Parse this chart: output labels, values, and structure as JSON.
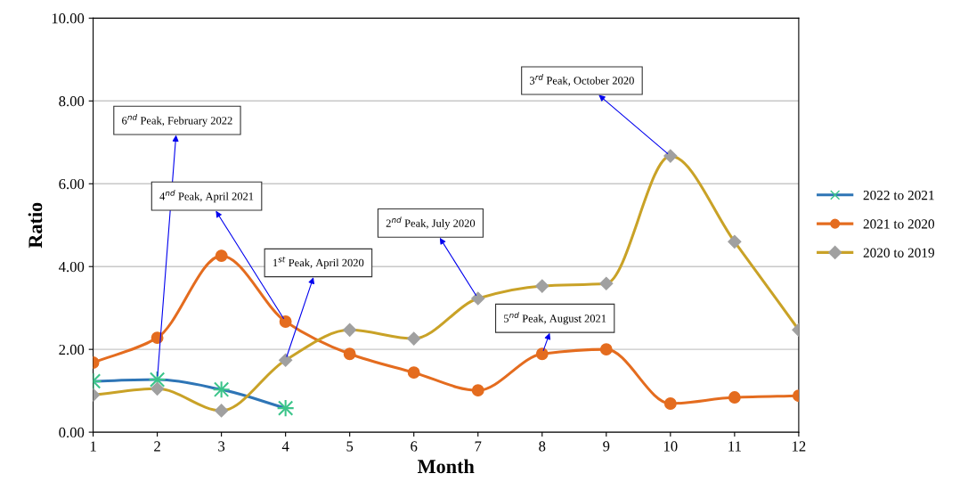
{
  "chart_data": {
    "type": "line",
    "xlabel": "Month",
    "ylabel": "Ratio",
    "x": [
      1,
      2,
      3,
      4,
      5,
      6,
      7,
      8,
      9,
      10,
      11,
      12
    ],
    "series": [
      {
        "name": "2022 to 2021",
        "color": "#2e75b6",
        "marker": "cross",
        "values": [
          1.23,
          1.27,
          1.03,
          0.58,
          null,
          null,
          null,
          null,
          null,
          null,
          null,
          null
        ]
      },
      {
        "name": "2021 to 2020",
        "color": "#e46c1f",
        "marker": "circle",
        "values": [
          1.68,
          2.28,
          4.26,
          2.67,
          1.89,
          1.44,
          1.01,
          1.89,
          2.0,
          0.69,
          0.84,
          0.88
        ]
      },
      {
        "name": "2020 to 2019",
        "color": "#c9a227",
        "marker": "diamond",
        "values": [
          0.9,
          1.05,
          0.52,
          1.74,
          2.47,
          2.26,
          3.23,
          3.53,
          3.59,
          6.67,
          4.6,
          2.47
        ]
      }
    ],
    "xlim": [
      1,
      12
    ],
    "xticks": [
      1,
      2,
      3,
      4,
      5,
      6,
      7,
      8,
      9,
      10,
      11,
      12
    ],
    "ylim": [
      0,
      10
    ],
    "yticks": [
      {
        "value": 0,
        "label": "0.00"
      },
      {
        "value": 2,
        "label": "2.00"
      },
      {
        "value": 4,
        "label": "4.00"
      },
      {
        "value": 6,
        "label": "6.00"
      },
      {
        "value": 8,
        "label": "8.00"
      },
      {
        "value": 10,
        "label": "10.00"
      }
    ],
    "grid": "y",
    "legend": "right",
    "line_style": "solid",
    "annotations": [
      {
        "text": "6$^{nd}$ Peak, February 2022",
        "x": 2,
        "y": 1.27
      },
      {
        "text": "4$^{nd}$ Peak, April 2021",
        "x": 4,
        "y": 2.67
      },
      {
        "text": "1$^{st}$ Peak, April 2020",
        "x": 4,
        "y": 1.74
      },
      {
        "text": "2$^{nd}$ Peak, July 2020",
        "x": 7,
        "y": 3.23
      },
      {
        "text": "5$^{nd}$ Peak, August 2021",
        "x": 8,
        "y": 1.89
      },
      {
        "text": "3$^{rd}$ Peak, October 2020",
        "x": 10,
        "y": 6.67
      }
    ]
  }
}
